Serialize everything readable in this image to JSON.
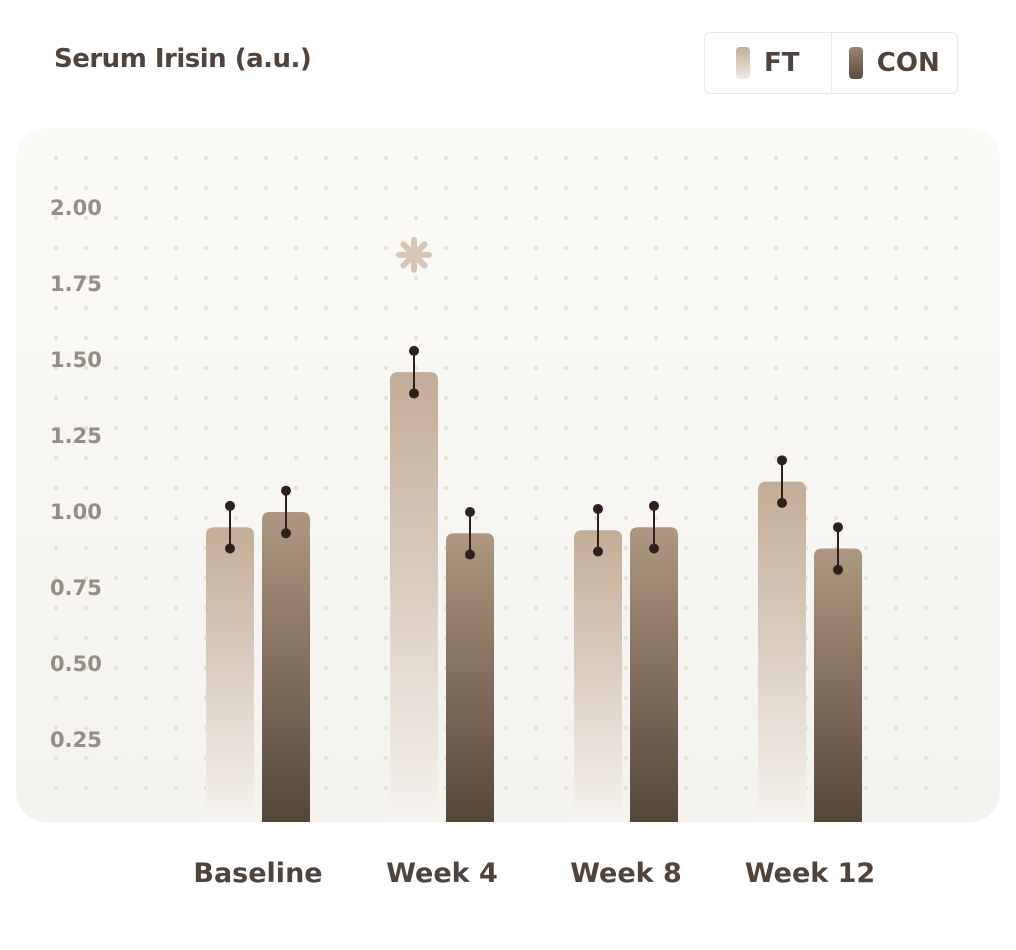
{
  "chart_data": {
    "type": "bar",
    "title": "Serum Irisin  (a.u.)",
    "categories": [
      "Baseline",
      "Week 4",
      "Week 8",
      "Week 12"
    ],
    "series": [
      {
        "name": "FT",
        "values": [
          0.95,
          1.46,
          0.94,
          1.1
        ],
        "error": [
          0.07,
          0.07,
          0.07,
          0.07
        ]
      },
      {
        "name": "CON",
        "values": [
          1.0,
          0.93,
          0.95,
          0.88
        ],
        "error": [
          0.07,
          0.07,
          0.07,
          0.07
        ]
      }
    ],
    "ylim": [
      0,
      2.1
    ],
    "yticks": [
      "2.00",
      "1.75",
      "1.50",
      "1.25",
      "1.00",
      "0.75",
      "0.50",
      "0.25"
    ],
    "significance": [
      {
        "category": "Week 4",
        "series": "FT",
        "marker": "✱"
      }
    ],
    "grid": "dotted",
    "legend_position": "top-right",
    "colors": {
      "FT": "#c2ad97",
      "CON": "#5a4b3d",
      "error_bar": "#2e211b",
      "star": "#d6c6b6"
    }
  }
}
